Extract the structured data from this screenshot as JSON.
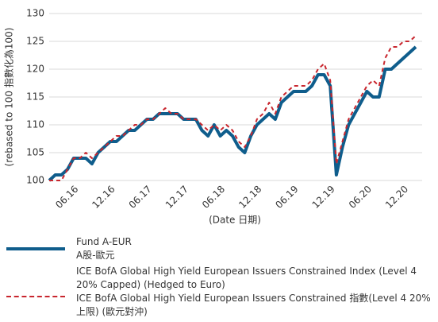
{
  "chart_data": {
    "type": "line",
    "y_label": "(rebased to 100 指數化為100)",
    "x_label": "(Date 日期)",
    "categories": [
      null,
      null,
      null,
      null,
      "06.16",
      null,
      null,
      null,
      null,
      null,
      "12.16",
      null,
      null,
      null,
      null,
      null,
      "06.17",
      null,
      null,
      null,
      null,
      null,
      "12.17",
      null,
      null,
      null,
      null,
      null,
      "06.18",
      null,
      null,
      null,
      null,
      null,
      "12.18",
      null,
      null,
      null,
      null,
      null,
      "06.19",
      null,
      null,
      null,
      null,
      null,
      "12.19",
      null,
      null,
      null,
      null,
      null,
      "06.20",
      null,
      null,
      null,
      null,
      null,
      "12.20",
      null,
      null
    ],
    "series": [
      {
        "name": "Fund A-EUR\nA股-歐元",
        "color": "#0f5d8c",
        "style": "solid",
        "values": [
          100,
          101,
          101,
          102,
          104,
          104,
          104,
          103,
          105,
          106,
          107,
          107,
          108,
          109,
          109,
          110,
          111,
          111,
          112,
          112,
          112,
          112,
          111,
          111,
          111,
          109,
          108,
          110,
          108,
          109,
          108,
          106,
          105,
          108,
          110,
          111,
          112,
          111,
          114,
          115,
          116,
          116,
          116,
          117,
          119,
          119,
          117,
          101,
          106,
          110,
          112,
          114,
          116,
          115,
          115,
          120,
          120,
          121,
          122,
          123,
          124
        ]
      },
      {
        "name": "ICE BofA Global High Yield European Issuers Constrained Index (Level 4 20% Capped) (Hedged to Euro)\nICE BofA Global High Yield European Issuers Constrained 指數(Level 4 20% 上限) (歐元對沖)",
        "color": "#c8262e",
        "style": "dashed",
        "values": [
          100,
          100,
          100,
          102,
          104,
          104,
          105,
          104,
          105,
          106,
          107,
          108,
          108,
          109,
          110,
          110,
          111,
          111,
          112,
          113,
          112,
          112,
          111,
          111,
          111,
          110,
          109,
          110,
          109,
          110,
          109,
          107,
          106,
          108,
          111,
          112,
          114,
          112,
          115,
          116,
          117,
          117,
          117,
          118,
          120,
          121,
          118,
          103,
          107,
          111,
          113,
          115,
          117,
          118,
          117,
          122,
          124,
          124,
          125,
          125,
          126
        ]
      }
    ],
    "ylim": [
      100,
      130
    ],
    "yticks": [
      100,
      105,
      110,
      115,
      120,
      125,
      130
    ],
    "grid": true
  }
}
